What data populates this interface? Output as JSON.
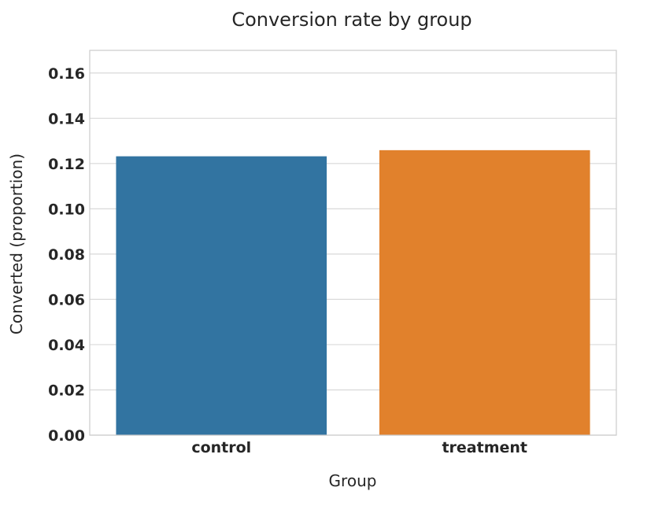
{
  "chart_data": {
    "type": "bar",
    "title": "Conversion rate by group",
    "xlabel": "Group",
    "ylabel": "Converted (proportion)",
    "categories": [
      "control",
      "treatment"
    ],
    "values": [
      0.1232,
      0.1259
    ],
    "ylim": [
      0,
      0.17
    ],
    "yticks": [
      "0.00",
      "0.02",
      "0.04",
      "0.06",
      "0.08",
      "0.10",
      "0.12",
      "0.14",
      "0.16"
    ],
    "colors": [
      "#3274a1",
      "#e1812c"
    ],
    "grid": true,
    "legend": "none"
  }
}
